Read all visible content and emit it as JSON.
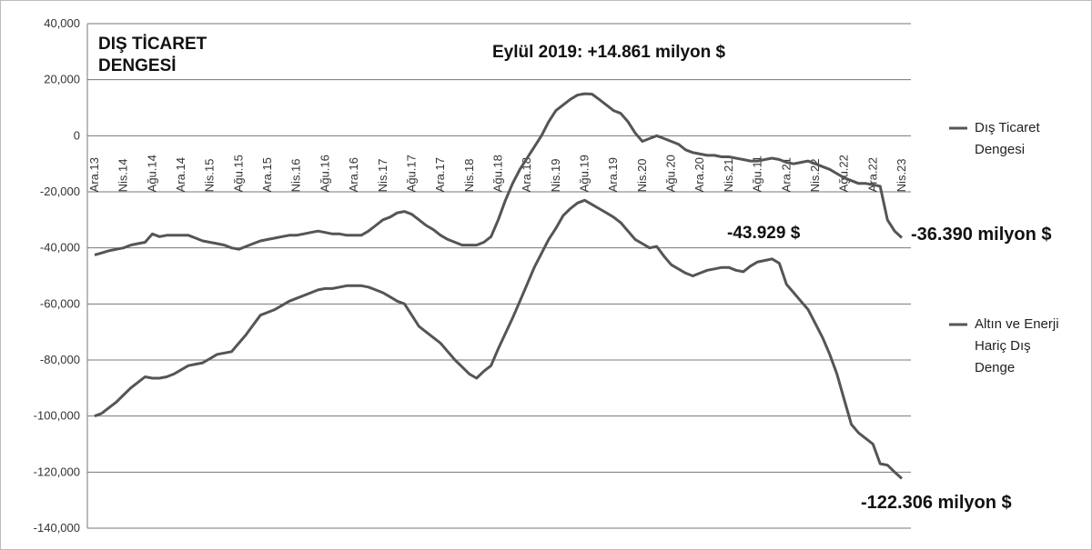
{
  "chart_data": {
    "type": "line",
    "title": "DIŞ TİCARET DENGESİ",
    "annotations": [
      "Eylül 2019: +14.861 milyon $",
      "-43.929 $",
      "-36.390 milyon $",
      "-122.306 milyon $"
    ],
    "categories": [
      "Ara.13",
      null,
      null,
      null,
      "Nis.14",
      null,
      null,
      null,
      "Ağu.14",
      null,
      null,
      null,
      "Ara.14",
      null,
      null,
      null,
      "Nis.15",
      null,
      null,
      null,
      "Ağu.15",
      null,
      null,
      null,
      "Ara.15",
      null,
      null,
      null,
      "Nis.16",
      null,
      null,
      null,
      "Ağu.16",
      null,
      null,
      null,
      "Ara.16",
      null,
      null,
      null,
      "Nis.17",
      null,
      null,
      null,
      "Ağu.17",
      null,
      null,
      null,
      "Ara.17",
      null,
      null,
      null,
      "Nis.18",
      null,
      null,
      null,
      "Ağu.18",
      null,
      null,
      null,
      "Ara.18",
      null,
      null,
      null,
      "Nis.19",
      null,
      null,
      null,
      "Ağu.19",
      null,
      null,
      null,
      "Ara.19",
      null,
      null,
      null,
      "Nis.20",
      null,
      null,
      null,
      "Ağu.20",
      null,
      null,
      null,
      "Ara.20",
      null,
      null,
      null,
      "Nis.21",
      null,
      null,
      null,
      "Ağu.11",
      null,
      null,
      null,
      "Ara.21",
      null,
      null,
      null,
      "Nis.22",
      null,
      null,
      null,
      "Ağu.22",
      null,
      null,
      null,
      "Ara.22",
      null,
      null,
      null,
      "Nis.23"
    ],
    "series": [
      {
        "name": "Dış Ticaret Dengesi",
        "color": "#555555",
        "values": [
          -42500,
          -41800,
          -41000,
          -40500,
          -40000,
          -39000,
          -38500,
          -38000,
          -35000,
          -36000,
          -35500,
          -35500,
          -35500,
          -35500,
          -36500,
          -37500,
          -38000,
          -38500,
          -39000,
          -40000,
          -40500,
          -39500,
          -38500,
          -37500,
          -37000,
          -36500,
          -36000,
          -35500,
          -35500,
          -35000,
          -34500,
          -34000,
          -34500,
          -35000,
          -35000,
          -35500,
          -35500,
          -35500,
          -34000,
          -32000,
          -30000,
          -29000,
          -27500,
          -27000,
          -28000,
          -30000,
          -32000,
          -33500,
          -35500,
          -37000,
          -38000,
          -39000,
          -39000,
          -39000,
          -38000,
          -36000,
          -30000,
          -23000,
          -17000,
          -12000,
          -8000,
          -4000,
          0,
          5000,
          9000,
          11000,
          13000,
          14500,
          15000,
          14861,
          13000,
          11000,
          9000,
          8000,
          5000,
          1000,
          -2000,
          -1000,
          0,
          -1000,
          -2000,
          -3000,
          -5000,
          -6000,
          -6500,
          -7000,
          -7000,
          -7500,
          -7500,
          -8000,
          -8500,
          -9000,
          -9000,
          -8500,
          -8000,
          -8500,
          -9500,
          -10000,
          -9500,
          -9000,
          -10000,
          -11000,
          -12000,
          -13500,
          -15000,
          -16000,
          -17000,
          -17000,
          -17500,
          -18000,
          -30000,
          -34000,
          -36390
        ]
      },
      {
        "name": "Altın ve Enerji Hariç Dış Denge",
        "color": "#555555",
        "values": [
          -100000,
          -99000,
          -97000,
          -95000,
          -92500,
          -90000,
          -88000,
          -86000,
          -86500,
          -86500,
          -86000,
          -85000,
          -83500,
          -82000,
          -81500,
          -81000,
          -79500,
          -78000,
          -77500,
          -77000,
          -74000,
          -71000,
          -67500,
          -64000,
          -63000,
          -62000,
          -60500,
          -59000,
          -58000,
          -57000,
          -56000,
          -55000,
          -54500,
          -54500,
          -54000,
          -53500,
          -53500,
          -53500,
          -54000,
          -55000,
          -56000,
          -57500,
          -59000,
          -60000,
          -64000,
          -68000,
          -70000,
          -72000,
          -74000,
          -77000,
          -80000,
          -82500,
          -85000,
          -86500,
          -84000,
          -82000,
          -76000,
          -70500,
          -65000,
          -59000,
          -53000,
          -47000,
          -42000,
          -37000,
          -33000,
          -28500,
          -26000,
          -24000,
          -23000,
          -24500,
          -26000,
          -27500,
          -29000,
          -31000,
          -34000,
          -37000,
          -38500,
          -40000,
          -39500,
          -43000,
          -46000,
          -47500,
          -49000,
          -50000,
          -49000,
          -48000,
          -47500,
          -47000,
          -47000,
          -48000,
          -48500,
          -46500,
          -45000,
          -44500,
          -43929,
          -45500,
          -53000,
          -56000,
          -59000,
          -62000,
          -67000,
          -72000,
          -78000,
          -85000,
          -94000,
          -103000,
          -106000,
          -108000,
          -110000,
          -117000,
          -117500,
          -120000,
          -122306
        ]
      }
    ],
    "ylim": [
      -140000,
      40000
    ],
    "yticks": [
      {
        "value": 40000,
        "label": "40,000"
      },
      {
        "value": 20000,
        "label": "20,000"
      },
      0,
      {
        "value": -20000,
        "label": "-20,000"
      },
      {
        "value": -40000,
        "label": "-40,000"
      },
      {
        "value": -60000,
        "label": "-60,000"
      },
      {
        "value": -80000,
        "label": "-80,000"
      },
      {
        "value": -100000,
        "label": "-100,000"
      },
      {
        "value": -120000,
        "label": "-120,000"
      },
      {
        "value": -140000,
        "label": "-140,000"
      }
    ],
    "grid": true
  }
}
